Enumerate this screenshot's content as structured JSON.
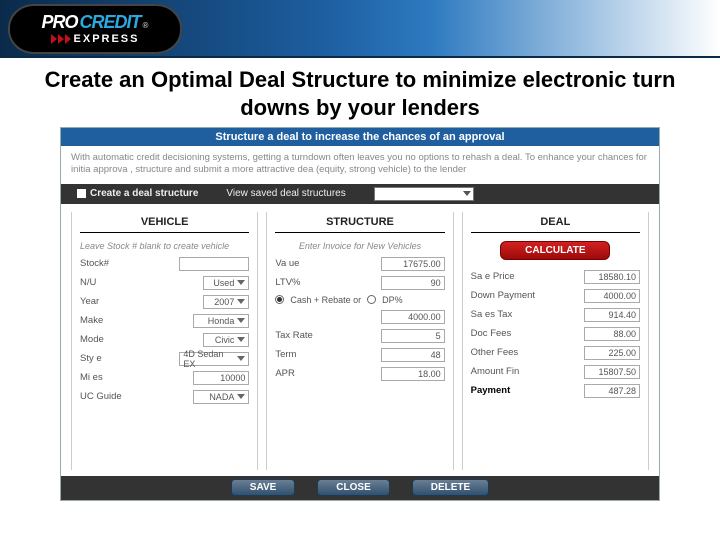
{
  "logo": {
    "pro": "PRO",
    "credit": "CREDIT",
    "reg": "®",
    "express": "EXPRESS"
  },
  "title": "Create an Optimal Deal Structure to minimize electronic turn downs by your lenders",
  "panel_heading": "Structure a deal to increase the chances of an approval",
  "intro": "With automatic credit decisioning systems, getting a turndown often leaves you no options to rehash a deal.  To enhance your chances for initia  approva , structure and submit a more attractive dea  (equity, strong vehicle) to the lender",
  "tabs": {
    "create": "Create a deal structure",
    "view": "View saved deal structures"
  },
  "vehicle": {
    "header": "VEHICLE",
    "hint": "Leave Stock # blank to create vehicle",
    "rows": {
      "stock": {
        "label": "Stock#",
        "value": ""
      },
      "nu": {
        "label": "N/U",
        "value": "Used",
        "dropdown": true
      },
      "year": {
        "label": "Year",
        "value": "2007",
        "dropdown": true
      },
      "make": {
        "label": "Make",
        "value": "Honda",
        "dropdown": true
      },
      "model": {
        "label": "Mode",
        "value": "Civic",
        "dropdown": true
      },
      "style": {
        "label": "Sty e",
        "value": "4D Sedan EX",
        "dropdown": true
      },
      "miles": {
        "label": "Mi es",
        "value": "10000"
      },
      "guide": {
        "label": "UC Guide",
        "value": "NADA",
        "dropdown": true
      }
    }
  },
  "structure": {
    "header": "STRUCTURE",
    "hint": "Enter Invoice for New Vehicles",
    "rows": {
      "value": {
        "label": "Va ue",
        "value": "17675.00"
      },
      "ltv": {
        "label": "LTV%",
        "value": "90"
      },
      "radio": {
        "a": "Cash + Rebate or",
        "b": "DP%"
      },
      "cash": {
        "label": "",
        "value": "4000.00"
      },
      "tax": {
        "label": "Tax Rate",
        "value": "5"
      },
      "term": {
        "label": "Term",
        "value": "48"
      },
      "apr": {
        "label": "APR",
        "value": "18.00"
      }
    }
  },
  "deal": {
    "header": "DEAL",
    "calc": "CALCULATE",
    "rows": {
      "sale": {
        "label": "Sa e Price",
        "value": "18580.10"
      },
      "down": {
        "label": "Down Payment",
        "value": "4000.00"
      },
      "salestax": {
        "label": "Sa es Tax",
        "value": "914.40"
      },
      "doc": {
        "label": "Doc Fees",
        "value": "88.00"
      },
      "other": {
        "label": "Other Fees",
        "value": "225.00"
      },
      "amtfin": {
        "label": "Amount Fin",
        "value": "15807.50"
      },
      "payment": {
        "label": "Payment",
        "value": "487.28"
      }
    }
  },
  "actions": {
    "save": "SAVE",
    "close": "CLOSE",
    "delete": "DELETE"
  }
}
